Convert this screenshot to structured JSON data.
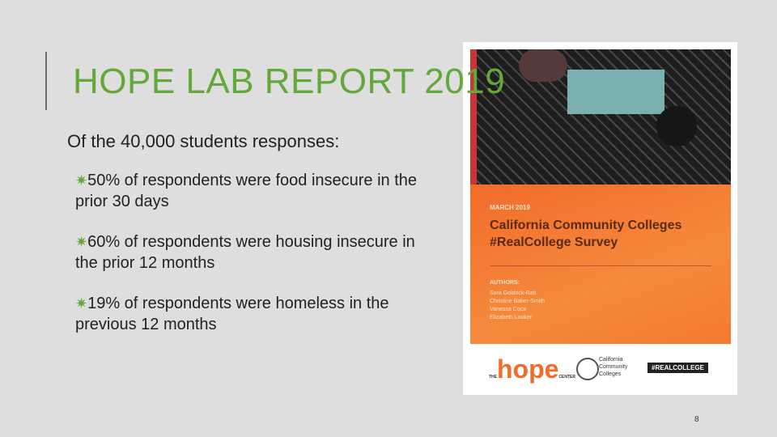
{
  "slide": {
    "title": "HOPE LAB REPORT 2019",
    "intro": "Of the 40,000 students responses:",
    "bullets": [
      "50% of respondents were food insecure in the prior 30 days",
      "60% of respondents were housing insecure in the prior 12 months",
      "19% of respondents were homeless in the previous 12 months"
    ],
    "page_number": "8"
  },
  "cover": {
    "date": "MARCH 2019",
    "title": "California Community Colleges #RealCollege Survey",
    "authors_label": "AUTHORS:",
    "authors": [
      "Sara Goldrick-Rab",
      "Christine Baker-Smith",
      "Vanessa Coca",
      "Elizabeth Looker"
    ],
    "logo_hope_prefix": "THE",
    "logo_hope": "hope",
    "logo_hope_suffix": "CENTER",
    "logo_ccc": "California Community Colleges",
    "logo_realcollege": "#REALCOLLEGE"
  }
}
